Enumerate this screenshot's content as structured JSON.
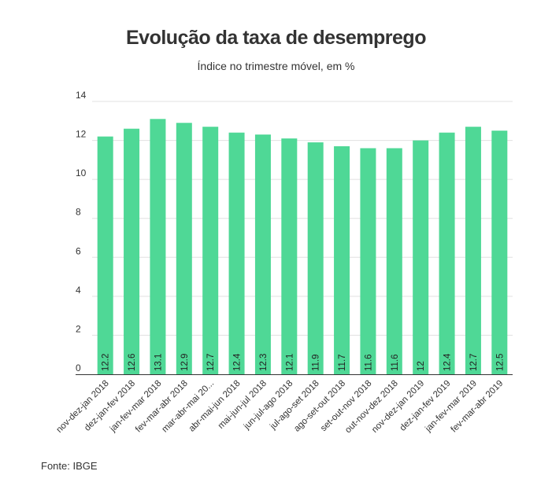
{
  "header": {
    "title": "Evolução da taxa de desemprego",
    "subtitle": "Índice no trimestre móvel, em %"
  },
  "footer": {
    "source": "Fonte: IBGE"
  },
  "chart_data": {
    "type": "bar",
    "title": "Evolução da taxa de desemprego",
    "subtitle": "Índice no trimestre móvel, em %",
    "xlabel": "",
    "ylabel": "",
    "ylim": [
      0,
      14
    ],
    "yticks": [
      0,
      2,
      4,
      6,
      8,
      10,
      12,
      14
    ],
    "grid": true,
    "bar_color": "#4fd896",
    "categories": [
      "nov-dez-jan 2018",
      "dez-jan-fev 2018",
      "jan-fev-mar 2018",
      "fev-mar-abr 2018",
      "mar-abr-mai 20...",
      "abr-mai-jun 2018",
      "mai-jun-jul 2018",
      "jun-jul-ago 2018",
      "jul-ago-set 2018",
      "ago-set-out 2018",
      "set-out-nov 2018",
      "out-nov-dez 2018",
      "nov-dez-jan 2019",
      "dez-jan-fev 2019",
      "jan-fev-mar 2019",
      "fev-mar-abr 2019"
    ],
    "values": [
      12.2,
      12.6,
      13.1,
      12.9,
      12.7,
      12.4,
      12.3,
      12.1,
      11.9,
      11.7,
      11.6,
      11.6,
      12,
      12.4,
      12.7,
      12.5
    ],
    "value_labels": [
      "12.2",
      "12.6",
      "13.1",
      "12.9",
      "12.7",
      "12.4",
      "12.3",
      "12.1",
      "11.9",
      "11.7",
      "11.6",
      "11.6",
      "12",
      "12.4",
      "12.7",
      "12.5"
    ]
  }
}
